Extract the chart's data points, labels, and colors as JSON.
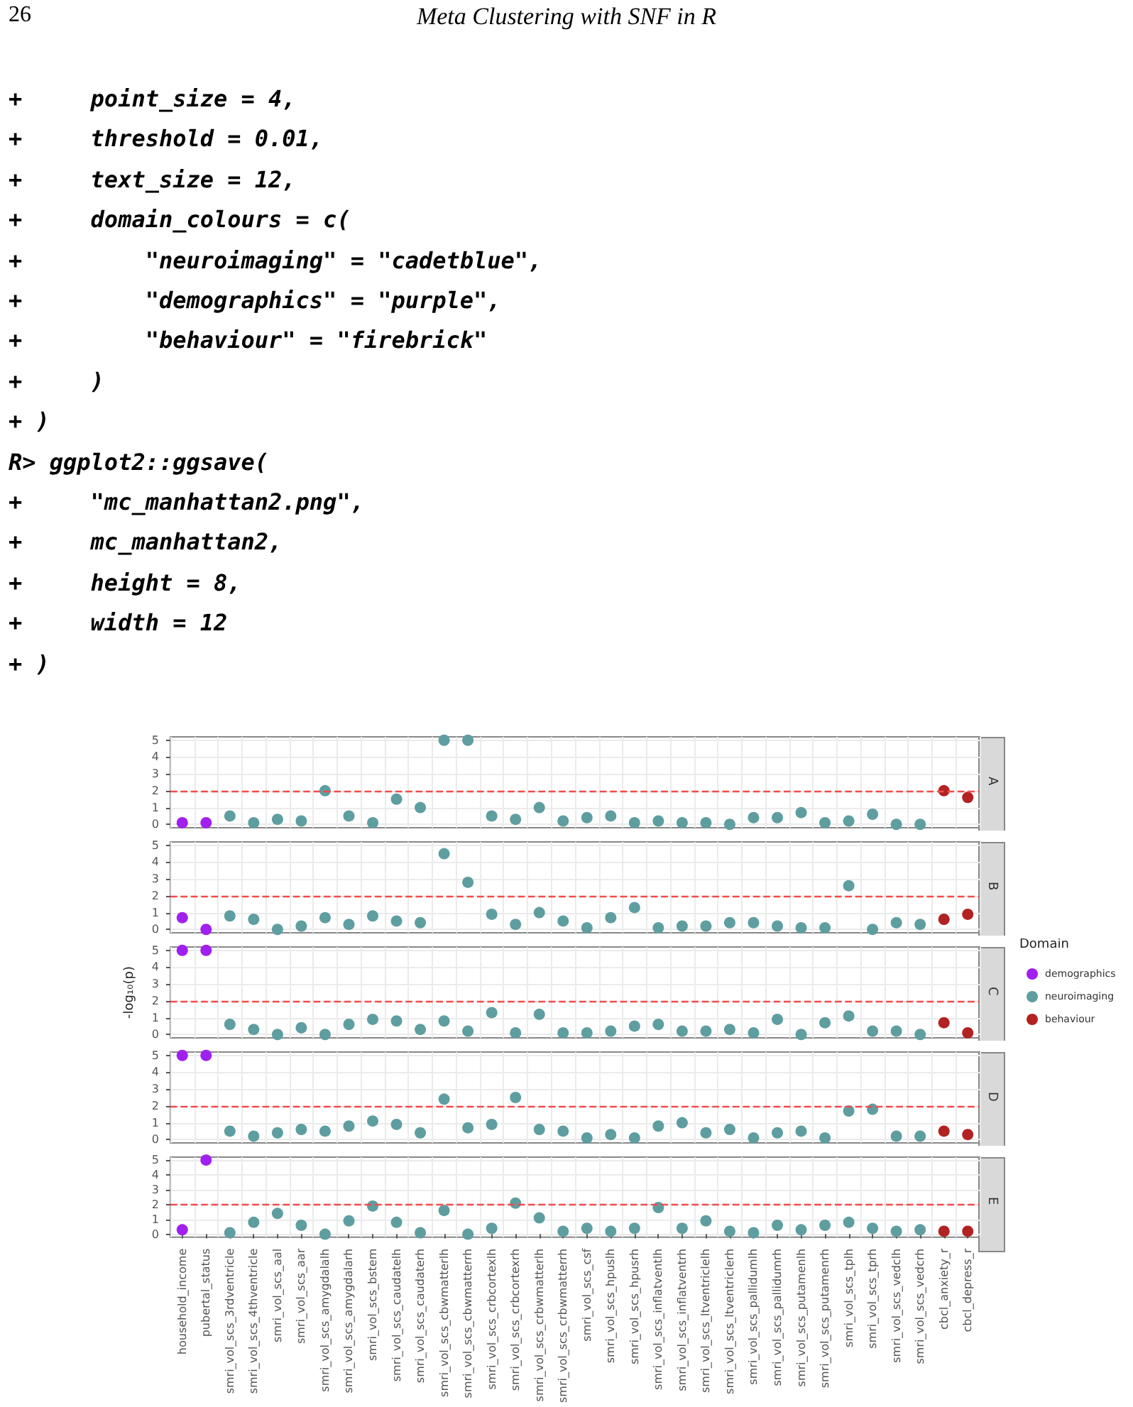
{
  "chart_data": [
    {
      "type": "scatter",
      "title": "A",
      "annotations": [
        "26",
        "Meta Clustering with SNF in R",
        "+     point_size = 4,",
        "+     threshold = 0.01,",
        "+     text_size = 12,",
        "+     domain_colours = c(",
        "+         \"neuroimaging\" = \"cadetblue\",",
        "+         \"demographics\" = \"purple\",",
        "+         \"behaviour\" = \"firebrick\"",
        "+     )",
        "+ )",
        "R> ggplot2::ggsave(",
        "+     \"mc_manhattan2.png\",",
        "+     mc_manhattan2,",
        "+     height = 8,",
        "+     width = 12",
        "+ )"
      ],
      "series": [
        {
          "color": "#a020f0",
          "values": [
            0.1,
            0.1,
            null,
            null,
            null,
            null,
            null,
            null,
            null,
            null,
            null,
            null,
            null,
            null,
            null,
            null,
            null,
            null,
            null,
            null,
            null,
            null,
            null,
            null,
            null,
            null,
            null,
            null,
            null,
            null,
            null,
            null,
            null,
            null
          ]
        },
        {
          "color": "#5f9ea0",
          "values": [
            null,
            null,
            0.5,
            0.1,
            0.3,
            0.2,
            2.0,
            0.5,
            0.1,
            1.5,
            1.0,
            5,
            5,
            0.5,
            0.3,
            1.0,
            0.2,
            0.4,
            0.5,
            0.1,
            0.2,
            0.1,
            0.1,
            0.0,
            0.4,
            0.4,
            0.7,
            0.1,
            0.2,
            0.6,
            0.0,
            0.0,
            null,
            null
          ]
        },
        {
          "color": "#b22222",
          "values": [
            null,
            null,
            null,
            null,
            null,
            null,
            null,
            null,
            null,
            null,
            null,
            null,
            null,
            null,
            null,
            null,
            null,
            null,
            null,
            null,
            null,
            null,
            null,
            null,
            null,
            null,
            null,
            null,
            null,
            null,
            null,
            null,
            2.0,
            1.6
          ]
        }
      ],
      "ylim": [
        -0.2,
        5.2
      ],
      "yticks": [
        0,
        1,
        2,
        3,
        4,
        5
      ],
      "grid": true,
      "marker": "circle",
      "tick_labels": "y",
      "ref_lines": [
        {
          "axis": "y",
          "value": 2,
          "color": "#f24b4b",
          "line_style": "dashed"
        }
      ]
    },
    {
      "type": "scatter",
      "title": "B",
      "series": [
        {
          "color": "#a020f0",
          "values": [
            0.7,
            0.0,
            null,
            null,
            null,
            null,
            null,
            null,
            null,
            null,
            null,
            null,
            null,
            null,
            null,
            null,
            null,
            null,
            null,
            null,
            null,
            null,
            null,
            null,
            null,
            null,
            null,
            null,
            null,
            null,
            null,
            null,
            null,
            null
          ]
        },
        {
          "color": "#5f9ea0",
          "values": [
            null,
            null,
            0.8,
            0.6,
            0.0,
            0.2,
            0.7,
            0.3,
            0.8,
            0.5,
            0.4,
            4.5,
            2.8,
            0.9,
            0.3,
            1.0,
            0.5,
            0.1,
            0.7,
            1.3,
            0.1,
            0.2,
            0.2,
            0.4,
            0.4,
            0.2,
            0.1,
            0.1,
            2.6,
            0.0,
            0.4,
            0.3,
            null,
            null
          ]
        },
        {
          "color": "#b22222",
          "values": [
            null,
            null,
            null,
            null,
            null,
            null,
            null,
            null,
            null,
            null,
            null,
            null,
            null,
            null,
            null,
            null,
            null,
            null,
            null,
            null,
            null,
            null,
            null,
            null,
            null,
            null,
            null,
            null,
            null,
            null,
            null,
            null,
            0.6,
            0.9
          ]
        }
      ],
      "ylim": [
        -0.2,
        5.2
      ],
      "yticks": [
        0,
        1,
        2,
        3,
        4,
        5
      ],
      "grid": true,
      "marker": "circle",
      "tick_labels": "y",
      "ref_lines": [
        {
          "axis": "y",
          "value": 2,
          "color": "#f24b4b",
          "line_style": "dashed"
        }
      ]
    },
    {
      "type": "scatter",
      "title": "C",
      "ylabel": "-log₁₀(p)",
      "legend": "right",
      "legend_title": "Domain",
      "series": [
        {
          "name": "demographics",
          "color": "#a020f0",
          "values": [
            5,
            5,
            null,
            null,
            null,
            null,
            null,
            null,
            null,
            null,
            null,
            null,
            null,
            null,
            null,
            null,
            null,
            null,
            null,
            null,
            null,
            null,
            null,
            null,
            null,
            null,
            null,
            null,
            null,
            null,
            null,
            null,
            null,
            null
          ]
        },
        {
          "name": "neuroimaging",
          "color": "#5f9ea0",
          "values": [
            null,
            null,
            0.6,
            0.3,
            0.0,
            0.4,
            0.0,
            0.6,
            0.9,
            0.8,
            0.3,
            0.8,
            0.2,
            1.3,
            0.1,
            1.2,
            0.1,
            0.1,
            0.2,
            0.5,
            0.6,
            0.2,
            0.2,
            0.3,
            0.1,
            0.9,
            0.0,
            0.7,
            1.1,
            0.2,
            0.2,
            0.0,
            null,
            null
          ]
        },
        {
          "name": "behaviour",
          "color": "#b22222",
          "values": [
            null,
            null,
            null,
            null,
            null,
            null,
            null,
            null,
            null,
            null,
            null,
            null,
            null,
            null,
            null,
            null,
            null,
            null,
            null,
            null,
            null,
            null,
            null,
            null,
            null,
            null,
            null,
            null,
            null,
            null,
            null,
            null,
            0.7,
            0.1
          ]
        }
      ],
      "ylim": [
        -0.2,
        5.2
      ],
      "yticks": [
        0,
        1,
        2,
        3,
        4,
        5
      ],
      "grid": true,
      "marker": "circle",
      "tick_labels": "y",
      "ref_lines": [
        {
          "axis": "y",
          "value": 2,
          "color": "#f24b4b",
          "line_style": "dashed"
        }
      ]
    },
    {
      "type": "scatter",
      "title": "D",
      "series": [
        {
          "color": "#a020f0",
          "values": [
            5,
            5,
            null,
            null,
            null,
            null,
            null,
            null,
            null,
            null,
            null,
            null,
            null,
            null,
            null,
            null,
            null,
            null,
            null,
            null,
            null,
            null,
            null,
            null,
            null,
            null,
            null,
            null,
            null,
            null,
            null,
            null,
            null,
            null
          ]
        },
        {
          "color": "#5f9ea0",
          "values": [
            null,
            null,
            0.5,
            0.2,
            0.4,
            0.6,
            0.5,
            0.8,
            1.1,
            0.9,
            0.4,
            2.4,
            0.7,
            0.9,
            2.5,
            0.6,
            0.5,
            0.1,
            0.3,
            0.1,
            0.8,
            1.0,
            0.4,
            0.6,
            0.1,
            0.4,
            0.5,
            0.1,
            1.7,
            1.8,
            0.2,
            0.2,
            null,
            null
          ]
        },
        {
          "color": "#b22222",
          "values": [
            null,
            null,
            null,
            null,
            null,
            null,
            null,
            null,
            null,
            null,
            null,
            null,
            null,
            null,
            null,
            null,
            null,
            null,
            null,
            null,
            null,
            null,
            null,
            null,
            null,
            null,
            null,
            null,
            null,
            null,
            null,
            null,
            0.5,
            0.3
          ]
        }
      ],
      "ylim": [
        -0.2,
        5.2
      ],
      "yticks": [
        0,
        1,
        2,
        3,
        4,
        5
      ],
      "grid": true,
      "marker": "circle",
      "tick_labels": "y",
      "ref_lines": [
        {
          "axis": "y",
          "value": 2,
          "color": "#f24b4b",
          "line_style": "dashed"
        }
      ]
    },
    {
      "type": "scatter",
      "title": "E",
      "categories": [
        "household_income",
        "pubertal_status",
        "smri_vol_scs_3rdventricle",
        "smri_vol_scs_4thventricle",
        "smri_vol_scs_aal",
        "smri_vol_scs_aar",
        "smri_vol_scs_amygdalalh",
        "smri_vol_scs_amygdalarh",
        "smri_vol_scs_bstem",
        "smri_vol_scs_caudatelh",
        "smri_vol_scs_caudaterh",
        "smri_vol_scs_cbwmatterlh",
        "smri_vol_scs_cbwmatterrh",
        "smri_vol_scs_crbcortexlh",
        "smri_vol_scs_crbcortexrh",
        "smri_vol_scs_crbwmatterlh",
        "smri_vol_scs_crbwmatterrh",
        "smri_vol_scs_csf",
        "smri_vol_scs_hpuslh",
        "smri_vol_scs_hpusrh",
        "smri_vol_scs_inflatventlh",
        "smri_vol_scs_inflatventrh",
        "smri_vol_scs_ltventriclelh",
        "smri_vol_scs_ltventriclerh",
        "smri_vol_scs_pallidumlh",
        "smri_vol_scs_pallidumrh",
        "smri_vol_scs_putamenlh",
        "smri_vol_scs_putamenrh",
        "smri_vol_scs_tplh",
        "smri_vol_scs_tprh",
        "smri_vol_scs_vedclh",
        "smri_vol_scs_vedcrh",
        "cbcl_anxiety_r",
        "cbcl_depress_r"
      ],
      "series": [
        {
          "color": "#a020f0",
          "values": [
            0.3,
            5,
            null,
            null,
            null,
            null,
            null,
            null,
            null,
            null,
            null,
            null,
            null,
            null,
            null,
            null,
            null,
            null,
            null,
            null,
            null,
            null,
            null,
            null,
            null,
            null,
            null,
            null,
            null,
            null,
            null,
            null,
            null,
            null
          ]
        },
        {
          "color": "#5f9ea0",
          "values": [
            null,
            null,
            0.1,
            0.8,
            1.4,
            0.6,
            0.0,
            0.9,
            1.9,
            0.8,
            0.1,
            1.6,
            0.0,
            0.4,
            2.1,
            1.1,
            0.2,
            0.4,
            0.2,
            0.4,
            1.8,
            0.4,
            0.9,
            0.2,
            0.1,
            0.6,
            0.3,
            0.6,
            0.8,
            0.4,
            0.2,
            0.3,
            null,
            null
          ]
        },
        {
          "color": "#b22222",
          "values": [
            null,
            null,
            null,
            null,
            null,
            null,
            null,
            null,
            null,
            null,
            null,
            null,
            null,
            null,
            null,
            null,
            null,
            null,
            null,
            null,
            null,
            null,
            null,
            null,
            null,
            null,
            null,
            null,
            null,
            null,
            null,
            null,
            0.2,
            0.2
          ]
        }
      ],
      "ylim": [
        -0.2,
        5.2
      ],
      "yticks": [
        0,
        1,
        2,
        3,
        4,
        5
      ],
      "grid": true,
      "marker": "circle",
      "ref_lines": [
        {
          "axis": "y",
          "value": 2,
          "color": "#f24b4b",
          "line_style": "dashed"
        }
      ]
    }
  ]
}
